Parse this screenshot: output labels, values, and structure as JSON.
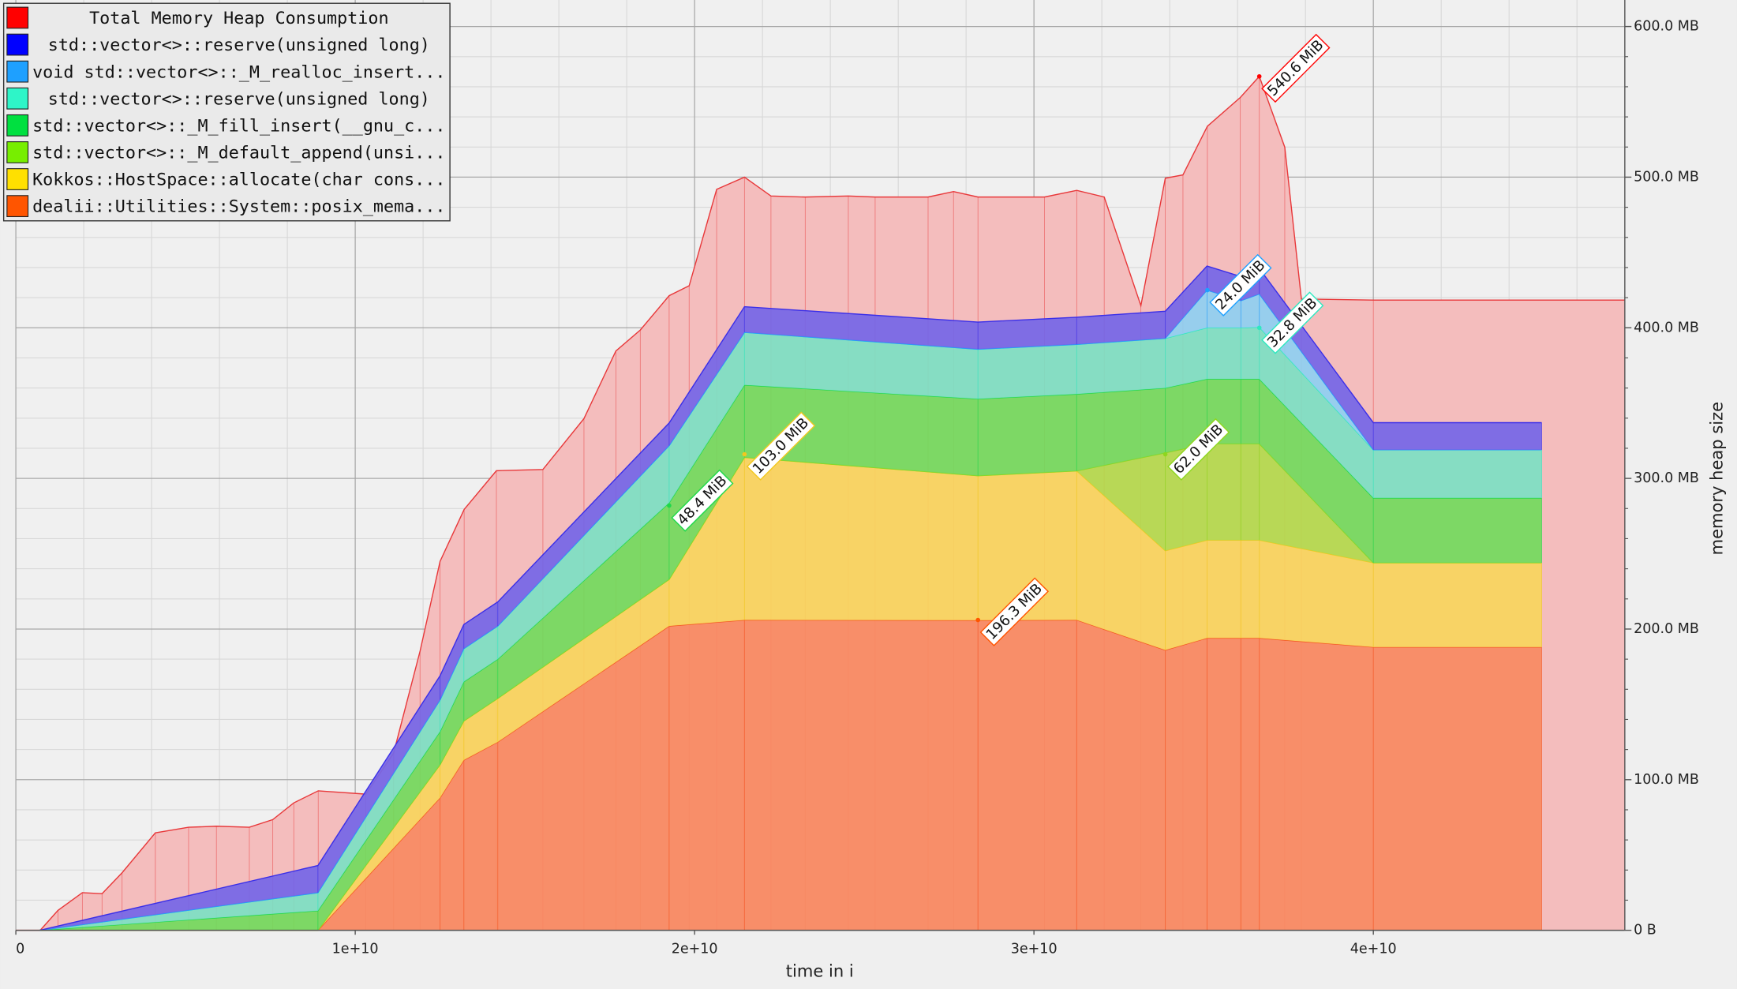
{
  "chart_data": {
    "type": "stacked-area",
    "x_label": "time in i",
    "y_label": "memory heap size",
    "xlim": [
      0,
      47410000000.0
    ],
    "ylim": [
      0,
      617.6
    ],
    "xticks": [
      0,
      {
        "value": 10000000000.0,
        "label": "1e+10"
      },
      {
        "value": 20000000000.0,
        "label": "2e+10"
      },
      {
        "value": 30000000000.0,
        "label": "3e+10"
      },
      {
        "value": 40000000000.0,
        "label": "4e+10"
      }
    ],
    "yticks": [
      {
        "value": 0,
        "label": "0 B"
      },
      {
        "value": 100,
        "label": "100.0 MB"
      },
      {
        "value": 200,
        "label": "200.0 MB"
      },
      {
        "value": 300,
        "label": "300.0 MB"
      },
      {
        "value": 400,
        "label": "400.0 MB"
      },
      {
        "value": 500,
        "label": "500.0 MB"
      },
      {
        "value": 600,
        "label": "600.0 MB"
      }
    ],
    "grid": true,
    "legend": "top-left",
    "x": [
      700000000.0,
      8900000000.0,
      12500000000.0,
      13200000000.0,
      14200000000.0,
      19250000000.0,
      21470000000.0,
      28350000000.0,
      31260000000.0,
      33870000000.0,
      35100000000.0,
      36100000000.0,
      36640000000.0,
      40000000000.0,
      44960000000.0
    ],
    "series": [
      {
        "name": "Total Memory Heap Consumption",
        "color": "#ff0000",
        "fill": "#f4bdbd",
        "stroke": "#e8383a",
        "x": [
          0,
          718000000.0,
          1240000000.0,
          1960000000.0,
          2540000000.0,
          3130000000.0,
          4110000000.0,
          5090000000.0,
          5910000000.0,
          6880000000.0,
          7570000000.0,
          8190000000.0,
          8910000000.0,
          10310000000.0,
          11130000000.0,
          11910000000.0,
          12500000000.0,
          13210000000.0,
          14160000000.0,
          15530000000.0,
          16740000000.0,
          17680000000.0,
          18400000000.0,
          19250000000.0,
          19840000000.0,
          20650000000.0,
          21470000000.0,
          22250000000.0,
          23260000000.0,
          24530000000.0,
          25320000000.0,
          26880000000.0,
          27630000000.0,
          28350000000.0,
          30310000000.0,
          31260000000.0,
          32070000000.0,
          33150000000.0,
          33870000000.0,
          34390000000.0,
          35110000000.0,
          36080000000.0,
          36640000000.0,
          37390000000.0,
          37880000000.0,
          40000000000.0,
          47410000000.0
        ],
        "values": [
          0,
          0,
          13.2,
          25,
          24.3,
          38.2,
          64.7,
          68.4,
          69.1,
          68.4,
          73.5,
          84.6,
          92.6,
          90.4,
          117.6,
          185.3,
          244.9,
          279.4,
          305.1,
          305.9,
          339.7,
          384.6,
          398.5,
          421.3,
          427.9,
          491.9,
          500,
          487.5,
          486.8,
          487.5,
          486.8,
          486.8,
          490.4,
          486.8,
          486.8,
          491.2,
          486.8,
          414.7,
          499.3,
          501.5,
          533.8,
          552.9,
          566.9,
          519.9,
          419.1,
          418.4,
          418.4
        ]
      },
      {
        "name": "std::vector<>::reserve(unsigned long)",
        "color": "#0000ff",
        "fill": "#7566e6",
        "stroke": "#3a2ee8",
        "values": [
          0,
          18,
          16,
          16,
          16,
          15,
          17,
          18,
          18,
          18,
          16,
          16,
          17,
          18,
          18
        ]
      },
      {
        "name": "void std::vector<>::_M_realloc_insert...",
        "color": "#1ea0ff",
        "fill": "#8fcff0",
        "stroke": "#1ea0ff",
        "values": [
          0,
          0,
          0,
          0,
          0,
          0,
          0,
          0,
          0,
          0,
          25,
          18,
          22,
          0,
          0
        ]
      },
      {
        "name": "std::vector<>::reserve(unsigned long)",
        "color": "#2ef5c8",
        "fill": "#7ddfc3",
        "stroke": "#2ee8c0",
        "values": [
          0,
          12,
          21,
          22,
          22,
          38,
          35,
          33,
          33,
          33,
          34,
          34,
          34.4,
          32,
          32
        ]
      },
      {
        "name": "std::vector<>::_M_fill_insert(__gnu_c...",
        "color": "#00e040",
        "fill": "#73d95e",
        "stroke": "#1ed84a",
        "values": [
          0,
          13,
          22,
          26,
          26,
          50.8,
          48,
          51,
          51,
          43,
          43,
          43,
          43,
          43,
          43
        ]
      },
      {
        "name": "std::vector<>::_M_default_append(unsi...",
        "color": "#77ee00",
        "fill": "#b3d94e",
        "stroke": "#8ed61e",
        "values": [
          0,
          0,
          0,
          0,
          0,
          0,
          0,
          0,
          0,
          65,
          64,
          64,
          64,
          0,
          0
        ]
      },
      {
        "name": "Kokkos::HostSpace::allocate(char cons...",
        "color": "#ffe000",
        "fill": "#f8d45e",
        "stroke": "#f2c81e",
        "values": [
          0,
          0,
          22,
          26,
          29,
          31,
          108,
          96,
          99,
          66,
          65,
          65,
          65,
          56,
          56
        ]
      },
      {
        "name": "dealii::Utilities::System::posix_mema...",
        "color": "#ff5500",
        "fill": "#f88a62",
        "stroke": "#f45420",
        "values": [
          0,
          0,
          88,
          113,
          125,
          202,
          206,
          205.8,
          206,
          186,
          194,
          194,
          194,
          188,
          188
        ]
      }
    ],
    "annotations": [
      {
        "text": "540.6 MiB",
        "x": 36640000000.0,
        "y": 566.9,
        "color": "#ff0000"
      },
      {
        "text": "24.0 MiB",
        "x": 35110000000.0,
        "y": 425,
        "color": "#1ea0ff"
      },
      {
        "text": "32.8 MiB",
        "x": 36640000000.0,
        "y": 400,
        "color": "#2ee8c0"
      },
      {
        "text": "103.0 MiB",
        "x": 21470000000.0,
        "y": 316,
        "color": "#f2c81e"
      },
      {
        "text": "48.4 MiB",
        "x": 19250000000.0,
        "y": 282,
        "color": "#1ed84a"
      },
      {
        "text": "62.0 MiB",
        "x": 33870000000.0,
        "y": 316,
        "color": "#8ed61e"
      },
      {
        "text": "196.3 MiB",
        "x": 28350000000.0,
        "y": 206,
        "color": "#ff5500"
      }
    ]
  }
}
